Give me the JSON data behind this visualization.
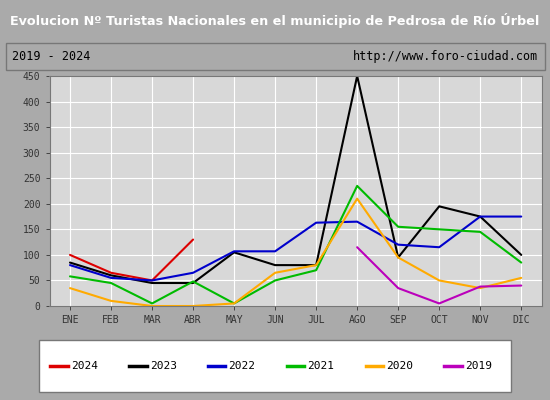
{
  "title": "Evolucion Nº Turistas Nacionales en el municipio de Pedrosa de Río Úrbel",
  "subtitle_left": "2019 - 2024",
  "subtitle_right": "http://www.foro-ciudad.com",
  "months": [
    "ENE",
    "FEB",
    "MAR",
    "ABR",
    "MAY",
    "JUN",
    "JUL",
    "AGO",
    "SEP",
    "OCT",
    "NOV",
    "DIC"
  ],
  "ylim": [
    0,
    450
  ],
  "yticks": [
    0,
    50,
    100,
    150,
    200,
    250,
    300,
    350,
    400,
    450
  ],
  "series_order": [
    "2024",
    "2023",
    "2022",
    "2021",
    "2020",
    "2019"
  ],
  "series": {
    "2024": {
      "color": "#dd0000",
      "values": [
        100,
        65,
        50,
        130,
        null,
        null,
        null,
        null,
        null,
        null,
        null,
        null
      ]
    },
    "2023": {
      "color": "#000000",
      "values": [
        85,
        60,
        45,
        45,
        105,
        80,
        80,
        450,
        95,
        195,
        175,
        100
      ]
    },
    "2022": {
      "color": "#0000cc",
      "values": [
        80,
        55,
        50,
        65,
        107,
        107,
        163,
        165,
        120,
        115,
        175,
        175
      ]
    },
    "2021": {
      "color": "#00bb00",
      "values": [
        58,
        45,
        5,
        48,
        5,
        50,
        70,
        235,
        155,
        150,
        145,
        85
      ]
    },
    "2020": {
      "color": "#ffaa00",
      "values": [
        35,
        10,
        0,
        0,
        5,
        65,
        80,
        210,
        95,
        50,
        35,
        55
      ]
    },
    "2019": {
      "color": "#bb00bb",
      "values": [
        null,
        null,
        null,
        null,
        null,
        null,
        null,
        115,
        35,
        5,
        38,
        40
      ]
    }
  },
  "title_bg": "#3366bb",
  "title_color": "#ffffff",
  "subtitle_bg": "#e0e0e0",
  "plot_bg": "#d8d8d8",
  "grid_color": "#ffffff",
  "fig_bg": "#aaaaaa"
}
